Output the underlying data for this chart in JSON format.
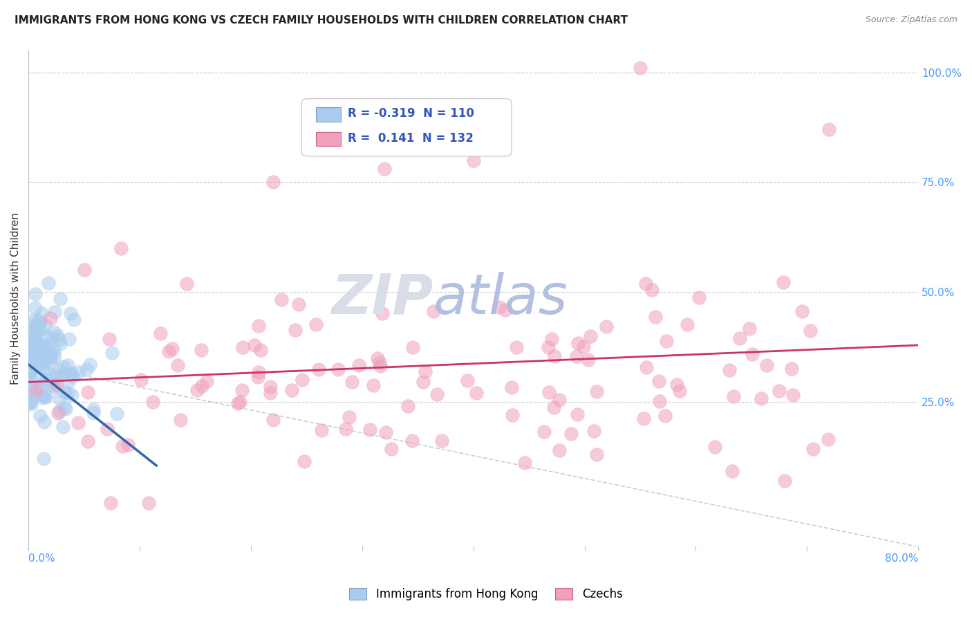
{
  "title": "IMMIGRANTS FROM HONG KONG VS CZECH FAMILY HOUSEHOLDS WITH CHILDREN CORRELATION CHART",
  "source": "Source: ZipAtlas.com",
  "ylabel": "Family Households with Children",
  "right_yticks": [
    "100.0%",
    "75.0%",
    "50.0%",
    "25.0%"
  ],
  "right_ytick_vals": [
    1.0,
    0.75,
    0.5,
    0.25
  ],
  "legend_label1": "Immigrants from Hong Kong",
  "legend_label2": "Czechs",
  "color_hk": "#aaccee",
  "color_czech": "#f0a0bc",
  "R_hk": -0.319,
  "N_hk": 110,
  "R_czech": 0.141,
  "N_czech": 132,
  "xmin": 0.0,
  "xmax": 0.8,
  "ymin": 0.0,
  "ymax": 1.05,
  "background_color": "#ffffff"
}
